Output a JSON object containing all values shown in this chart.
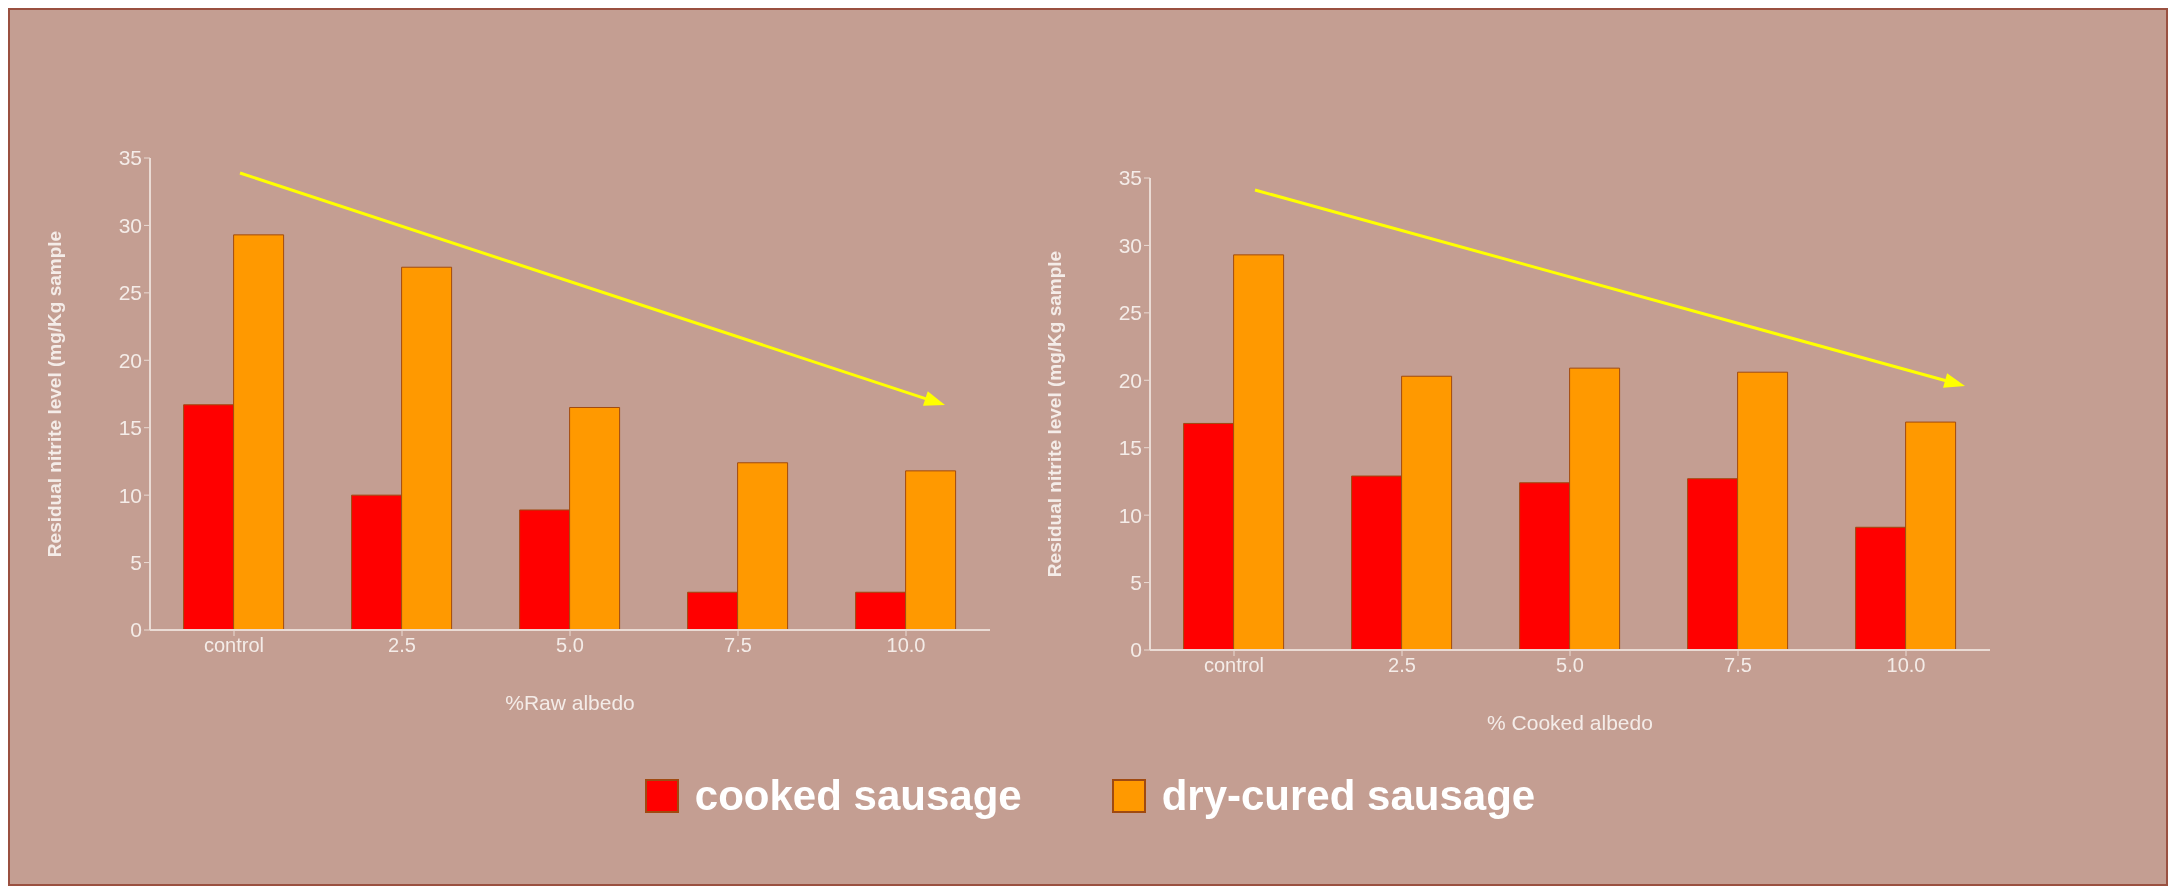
{
  "chart_data": [
    {
      "type": "bar",
      "categories": [
        "control",
        "2.5",
        "5.0",
        "7.5",
        "10.0"
      ],
      "xlabel": "%Raw albedo",
      "ylabel": "Residual nitrite level (mg/Kg sample",
      "ylim": [
        0,
        35
      ],
      "yticks": [
        0,
        5,
        10,
        15,
        20,
        25,
        30,
        35
      ],
      "grid": false,
      "legend": "bottom",
      "series": [
        {
          "name": "cooked sausage",
          "color": "#ff0000",
          "values": [
            16.7,
            10.0,
            8.9,
            2.8,
            2.8
          ]
        },
        {
          "name": "dry-cured sausage",
          "color": "#ff9900",
          "values": [
            29.3,
            26.9,
            16.5,
            12.4,
            11.8
          ]
        }
      ]
    },
    {
      "type": "bar",
      "categories": [
        "control",
        "2.5",
        "5.0",
        "7.5",
        "10.0"
      ],
      "xlabel": "% Cooked albedo",
      "ylabel": "Residual nitrite level (mg/Kg sample",
      "ylim": [
        0,
        35
      ],
      "yticks": [
        0,
        5,
        10,
        15,
        20,
        25,
        30,
        35
      ],
      "grid": false,
      "series": [
        {
          "color": "#ff0000",
          "values": [
            16.8,
            12.9,
            12.4,
            12.7,
            9.1
          ]
        },
        {
          "color": "#ff9900",
          "values": [
            29.3,
            20.3,
            20.9,
            20.6,
            16.9
          ]
        }
      ]
    }
  ]
}
